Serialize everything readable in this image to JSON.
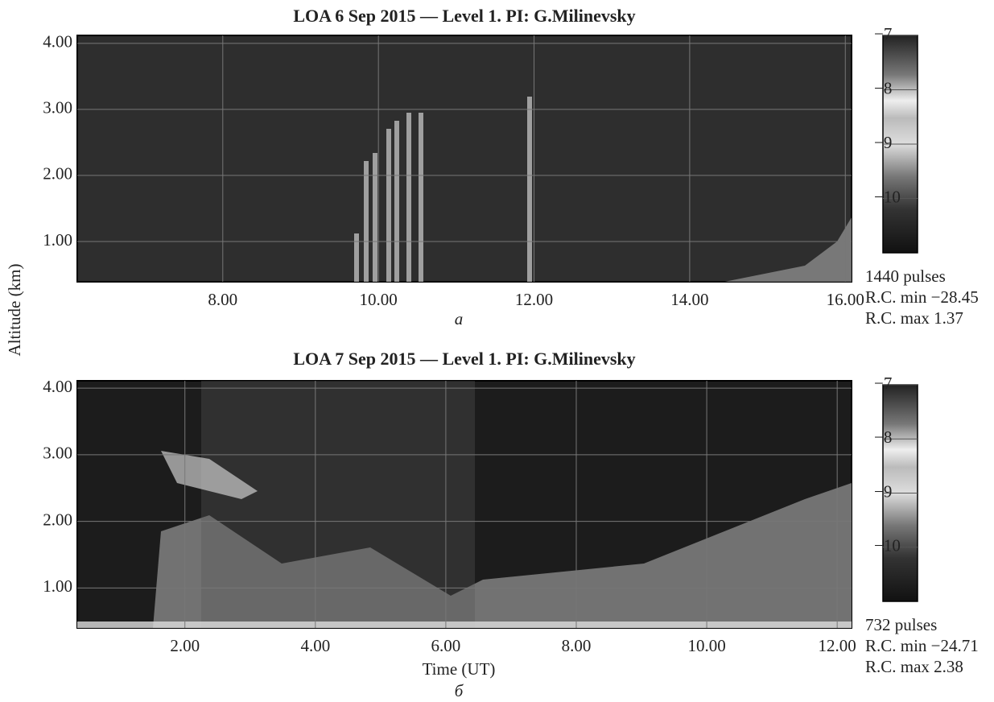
{
  "chart_data": [
    {
      "type": "heatmap",
      "title": "LOA 6 Sep 2015 — Level 1. PI: G.Milinevsky",
      "panel_label": "a",
      "ylabel": "Altitude (km)",
      "xlim": [
        6.13,
        16.08
      ],
      "xticks": [
        {
          "value": 8,
          "label": "8.00"
        },
        {
          "value": 10,
          "label": "10.00"
        },
        {
          "value": 12,
          "label": "12.00"
        },
        {
          "value": 14,
          "label": "14.00"
        },
        {
          "value": 16,
          "label": "16.00"
        }
      ],
      "ylim": [
        0.39,
        4.12
      ],
      "yticks": [
        {
          "value": 1,
          "label": "1.00"
        },
        {
          "value": 2,
          "label": "2.00"
        },
        {
          "value": 3,
          "label": "3.00"
        },
        {
          "value": 4,
          "label": "4.00"
        }
      ],
      "colorbar_lim": [
        -11,
        -7
      ],
      "colorbar_ticks": [
        {
          "value": -7,
          "label": "−7"
        },
        {
          "value": -8,
          "label": "−8"
        },
        {
          "value": -9,
          "label": "−9"
        },
        {
          "value": -10,
          "label": "−10"
        }
      ],
      "notes": [
        "1440 pulses",
        "R.C. min −28.45",
        "R.C. max 1.37"
      ]
    },
    {
      "type": "heatmap",
      "title": "LOA 7 Sep 2015 — Level 1. PI: G.Milinevsky",
      "panel_label": "б",
      "xlabel": "Time (UT)",
      "xlim": [
        0.35,
        12.22
      ],
      "xticks": [
        {
          "value": 2,
          "label": "2.00"
        },
        {
          "value": 4,
          "label": "4.00"
        },
        {
          "value": 6,
          "label": "6.00"
        },
        {
          "value": 8,
          "label": "8.00"
        },
        {
          "value": 10,
          "label": "10.00"
        },
        {
          "value": 12,
          "label": "12.00"
        }
      ],
      "ylim": [
        0.4,
        4.11
      ],
      "yticks": [
        {
          "value": 1,
          "label": "1.00"
        },
        {
          "value": 2,
          "label": "2.00"
        },
        {
          "value": 3,
          "label": "3.00"
        },
        {
          "value": 4,
          "label": "4.00"
        }
      ],
      "colorbar_lim": [
        -11,
        -7
      ],
      "colorbar_ticks": [
        {
          "value": -7,
          "label": "−7"
        },
        {
          "value": -8,
          "label": "−8"
        },
        {
          "value": -9,
          "label": "−9"
        },
        {
          "value": -10,
          "label": "−10"
        }
      ],
      "notes": [
        "732 pulses",
        "R.C. min −24.71",
        "R.C. max 2.38"
      ]
    }
  ]
}
